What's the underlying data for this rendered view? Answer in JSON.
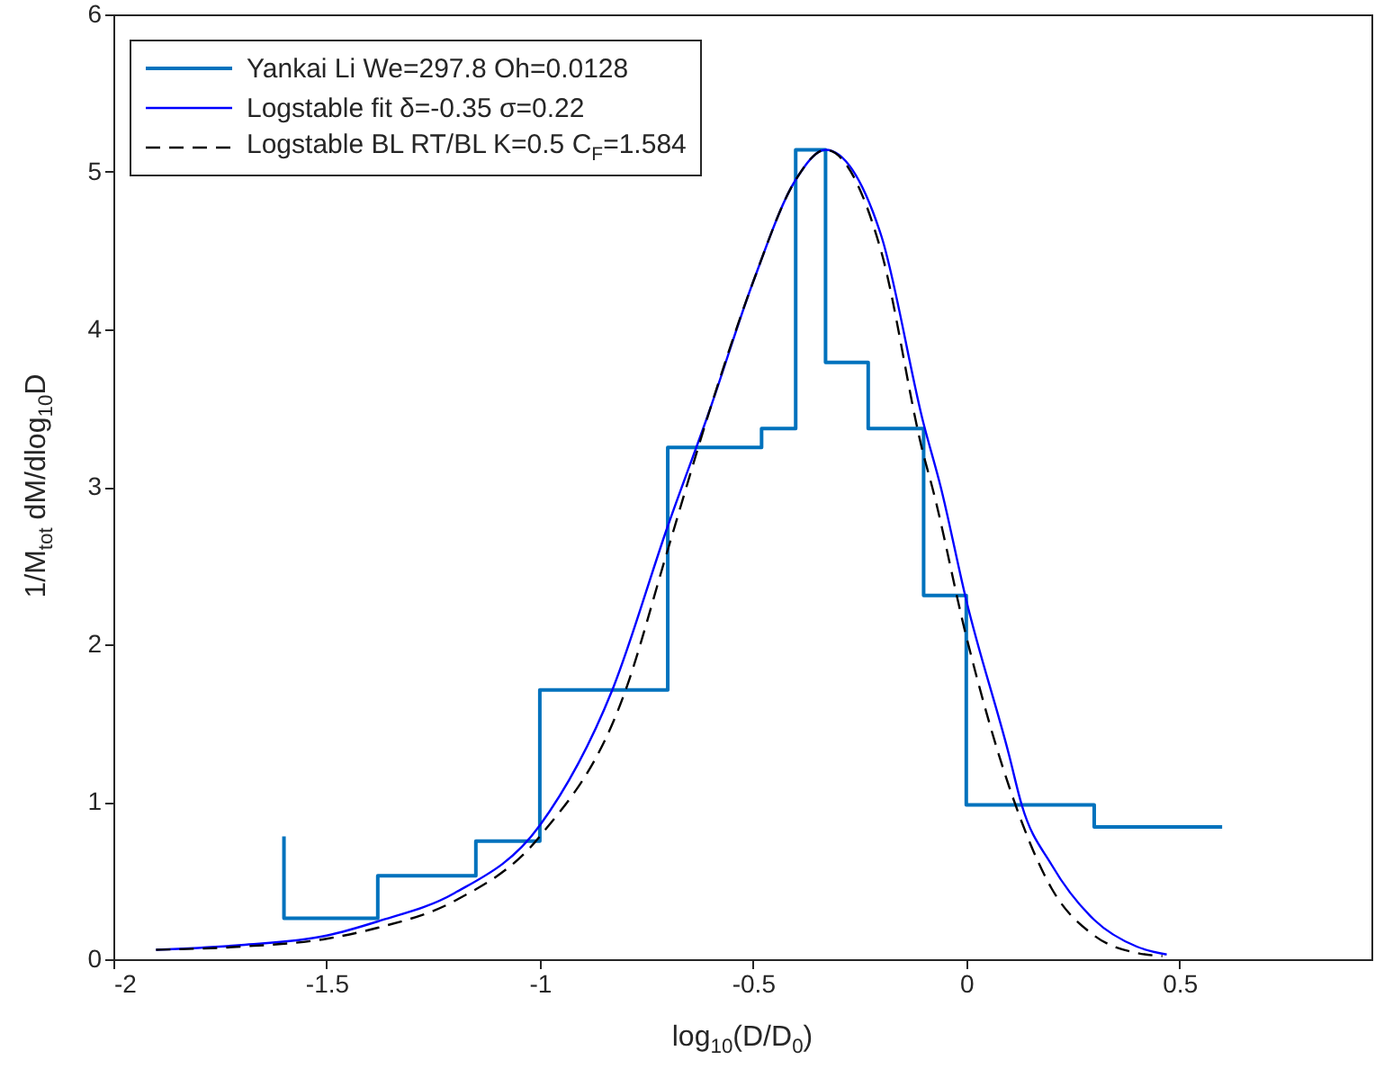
{
  "chart_data": {
    "type": "line",
    "xlabel": "log$_{10}$(D/D$_{0}$)",
    "ylabel": "1/M$_{tot}$ dM/dlog$_{10}$D",
    "xlim": [
      -2,
      0.95
    ],
    "xticks": [
      -2,
      -1.5,
      -1,
      -0.5,
      0,
      0.5
    ],
    "ylim": [
      0,
      6
    ],
    "yticks": [
      0,
      1,
      2,
      3,
      4,
      5,
      6
    ],
    "grid": false,
    "legend": "top left",
    "series": [
      {
        "name": "Yankai Li We=297.8 Oh=0.0128",
        "type": "step",
        "color": "#0072bd",
        "line_style": "solid",
        "x": [
          -1.6,
          -1.6,
          -1.38,
          -1.15,
          -1.0,
          -0.7,
          -0.48,
          -0.4,
          -0.33,
          -0.23,
          -0.1,
          0,
          0.3,
          0.6
        ],
        "values": [
          0.78,
          0.26,
          0.53,
          0.75,
          1.71,
          3.25,
          3.37,
          5.14,
          3.79,
          3.37,
          2.31,
          0.98,
          0.84,
          0.84
        ]
      },
      {
        "name": "Logstable fit δ=-0.35 σ=0.22",
        "type": "line",
        "color": "#0000ff",
        "line_style": "solid",
        "x": [
          -1.9,
          -1.7,
          -1.5,
          -1.38,
          -1.2,
          -1.0,
          -0.83,
          -0.7,
          -0.6,
          -0.5,
          -0.4,
          -0.33,
          -0.2,
          -0.1,
          -0.06,
          0,
          0.1,
          0.13,
          0.2,
          0.3,
          0.4,
          0.47
        ],
        "values": [
          0.06,
          0.09,
          0.15,
          0.24,
          0.42,
          0.85,
          1.71,
          2.75,
          3.5,
          4.3,
          4.95,
          5.14,
          4.6,
          3.4,
          3.0,
          2.28,
          1.3,
          0.98,
          0.6,
          0.25,
          0.08,
          0.03
        ]
      },
      {
        "name": "Logstable BL RT/BL K=0.5 C$_{F}$=1.584",
        "type": "line",
        "color": "#000000",
        "line_style": "dashed",
        "x": [
          -1.9,
          -1.7,
          -1.5,
          -1.38,
          -1.2,
          -1.0,
          -0.8,
          -0.7,
          -0.6,
          -0.5,
          -0.4,
          -0.33,
          -0.2,
          -0.1,
          -0.08,
          0,
          0.1,
          0.2,
          0.3,
          0.4,
          0.46
        ],
        "values": [
          0.06,
          0.08,
          0.13,
          0.2,
          0.37,
          0.78,
          1.7,
          2.6,
          3.5,
          4.3,
          4.95,
          5.14,
          4.5,
          3.2,
          3.0,
          2.05,
          1.1,
          0.45,
          0.15,
          0.04,
          0.02
        ]
      }
    ]
  }
}
